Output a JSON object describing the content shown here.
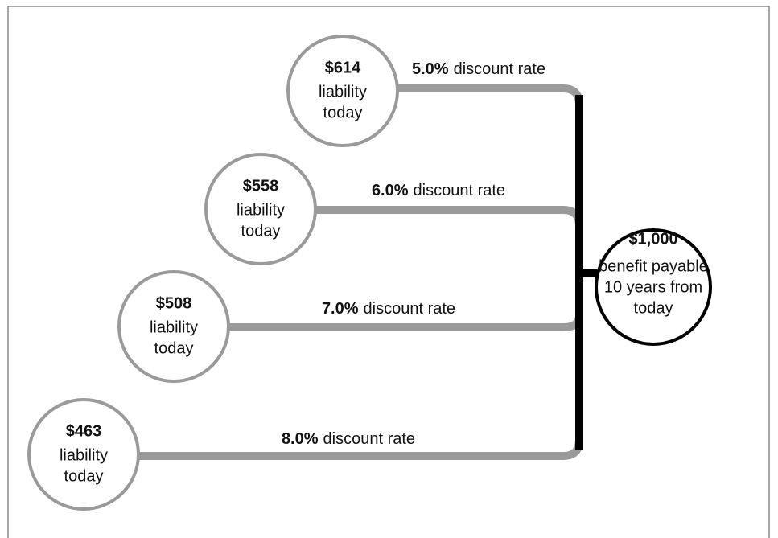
{
  "sources": [
    {
      "amount": "$614",
      "label_lines": [
        "liability",
        "today"
      ],
      "rate": "5.0%",
      "rate_text": "discount rate"
    },
    {
      "amount": "$558",
      "label_lines": [
        "liability",
        "today"
      ],
      "rate": "6.0%",
      "rate_text": "discount rate"
    },
    {
      "amount": "$508",
      "label_lines": [
        "liability",
        "today"
      ],
      "rate": "7.0%",
      "rate_text": "discount rate"
    },
    {
      "amount": "$463",
      "label_lines": [
        "liability",
        "today"
      ],
      "rate": "8.0%",
      "rate_text": "discount rate"
    }
  ],
  "target": {
    "amount": "$1,000",
    "label_lines": [
      "benefit payable",
      "10 years from",
      "today"
    ]
  }
}
